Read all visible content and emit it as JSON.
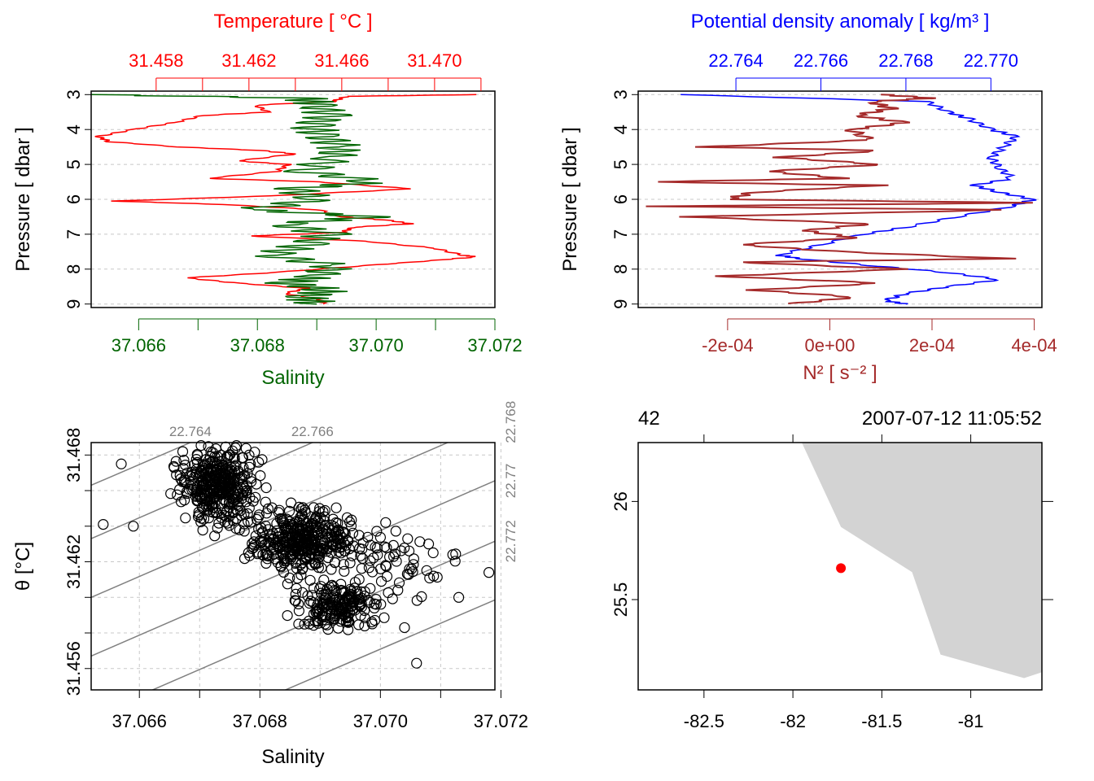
{
  "colors": {
    "temperature": "#ff0000",
    "salinity": "#006400",
    "density": "#0000ff",
    "n2": "#a52a2a",
    "grid": "#c8c8c8",
    "isopycnal": "#808080",
    "land": "#d3d3d3",
    "station": "#ff0000",
    "axis": "#000000"
  },
  "chart_data": [
    {
      "id": "profile_ts",
      "type": "line",
      "temp_axis": {
        "label": "Temperature [ °C ]",
        "ticks": [
          "31.458",
          "31.462",
          "31.466",
          "31.470"
        ],
        "range": [
          31.4552,
          31.4726
        ]
      },
      "sal_axis": {
        "label": "Salinity",
        "ticks": [
          "37.066",
          "37.068",
          "37.070",
          "37.072"
        ],
        "range": [
          37.0652,
          37.072
        ]
      },
      "pressure_axis": {
        "label": "Pressure [ dbar ]",
        "ticks": [
          "3",
          "4",
          "5",
          "6",
          "7",
          "8",
          "9"
        ],
        "range": [
          2.9,
          9.1
        ]
      },
      "series": [
        {
          "name": "Temperature",
          "pressure": [
            3.0,
            3.05,
            3.2,
            3.3,
            3.5,
            3.6,
            3.8,
            4.0,
            4.2,
            4.35,
            4.5,
            4.6,
            4.7,
            4.9,
            5.0,
            5.2,
            5.4,
            5.5,
            5.7,
            5.9,
            6.05,
            6.15,
            6.3,
            6.5,
            6.6,
            6.7,
            6.8,
            6.95,
            7.05,
            7.2,
            7.4,
            7.6,
            7.65,
            7.75,
            7.9,
            8.1,
            8.25,
            8.4,
            8.55,
            8.7,
            8.85,
            9.0
          ],
          "values": [
            31.4718,
            31.4662,
            31.4656,
            31.4623,
            31.4628,
            31.46,
            31.4588,
            31.457,
            31.4555,
            31.456,
            31.459,
            31.4625,
            31.464,
            31.4615,
            31.4637,
            31.4632,
            31.4602,
            31.465,
            31.469,
            31.463,
            31.4562,
            31.461,
            31.465,
            31.466,
            31.468,
            31.469,
            31.4665,
            31.466,
            31.462,
            31.467,
            31.47,
            31.4712,
            31.4718,
            31.47,
            31.467,
            31.463,
            31.4593,
            31.4615,
            31.4645,
            31.4635,
            31.465,
            31.4652
          ]
        },
        {
          "name": "Salinity",
          "pressure": [
            3.0,
            3.1,
            3.3,
            3.6,
            3.9,
            4.2,
            4.5,
            4.8,
            5.2,
            5.5,
            5.7,
            6.0,
            6.3,
            6.5,
            6.7,
            7.0,
            7.3,
            7.6,
            7.9,
            8.2,
            8.4,
            8.6,
            8.8,
            9.0
          ],
          "values": [
            37.0652,
            37.0688,
            37.069,
            37.0692,
            37.0689,
            37.0691,
            37.0694,
            37.0693,
            37.0688,
            37.07,
            37.0686,
            37.069,
            37.0679,
            37.07,
            37.0684,
            37.0692,
            37.0688,
            37.0682,
            37.0693,
            37.069,
            37.0685,
            37.0692,
            37.0688,
            37.069
          ]
        }
      ]
    },
    {
      "id": "profile_density_n2",
      "type": "line",
      "density_axis": {
        "label": "Potential density anomaly [ kg/m³ ]",
        "ticks": [
          "22.764",
          "22.766",
          "22.768",
          "22.770"
        ],
        "range": [
          22.7617,
          22.7712
        ]
      },
      "n2_axis": {
        "label": "N² [ s⁻² ]",
        "ticks": [
          "-2e-04",
          "0e+00",
          "2e-04",
          "4e-04"
        ],
        "range": [
          -0.000375,
          0.000415
        ]
      },
      "pressure_axis": {
        "label": "Pressure [ dbar ]",
        "ticks": [
          "3",
          "4",
          "5",
          "6",
          "7",
          "8",
          "9"
        ],
        "range": [
          2.9,
          9.1
        ]
      },
      "series": [
        {
          "name": "Density",
          "pressure": [
            3.0,
            3.2,
            3.5,
            3.7,
            4.0,
            4.2,
            4.5,
            4.8,
            5.1,
            5.4,
            5.6,
            5.8,
            6.0,
            6.2,
            6.5,
            6.8,
            7.0,
            7.3,
            7.6,
            7.7,
            7.9,
            8.1,
            8.3,
            8.5,
            8.7,
            8.9,
            9.0
          ],
          "values": [
            22.7627,
            22.7685,
            22.769,
            22.7695,
            22.77,
            22.7706,
            22.7703,
            22.77,
            22.7702,
            22.7705,
            22.7696,
            22.7702,
            22.771,
            22.7705,
            22.7692,
            22.768,
            22.767,
            22.766,
            22.765,
            22.7655,
            22.7672,
            22.769,
            22.7702,
            22.769,
            22.768,
            22.7675,
            22.768
          ]
        },
        {
          "name": "N2",
          "pressure": [
            3.0,
            3.1,
            3.2,
            3.4,
            3.6,
            3.8,
            4.0,
            4.3,
            4.5,
            4.6,
            4.8,
            5.0,
            5.2,
            5.4,
            5.5,
            5.6,
            5.8,
            6.0,
            6.1,
            6.2,
            6.3,
            6.5,
            6.7,
            6.9,
            7.1,
            7.3,
            7.5,
            7.7,
            7.8,
            8.0,
            8.2,
            8.4,
            8.6,
            8.8,
            9.0
          ],
          "values": [
            0.0001,
            0.0002,
            8e-05,
            0.00012,
            5e-05,
            0.00015,
            4e-05,
            8e-05,
            -0.00025,
            0.0001,
            -0.0001,
            0.0001,
            -0.00012,
            3e-05,
            -0.00035,
            0.0001,
            -0.00015,
            -0.0002,
            0.0004,
            -0.00035,
            0.00035,
            -0.00028,
            8e-05,
            -5e-05,
            5e-05,
            -0.00018,
            2e-05,
            0.00035,
            -0.00018,
            0.00015,
            -0.00022,
            0.0001,
            -0.00015,
            5e-05,
            -8e-05
          ]
        }
      ]
    },
    {
      "id": "ts_diagram",
      "type": "scatter",
      "xlabel": "Salinity",
      "ylabel": "θ [°C]",
      "x_ticks": [
        "37.066",
        "37.068",
        "37.070",
        "37.072"
      ],
      "y_ticks": [
        "31.456",
        "31.462",
        "31.468"
      ],
      "xlim": [
        37.0652,
        37.0719
      ],
      "ylim": [
        31.4548,
        31.4687
      ],
      "isopycnal_labels": [
        "22.764",
        "22.766",
        "22.768",
        "22.77",
        "22.772"
      ],
      "isopycnals": [
        {
          "label": "22.764",
          "edge": "top",
          "lines": [
            [
              37.0652,
              31.4663
            ],
            [
              37.07,
              31.4733
            ]
          ]
        },
        {
          "label": "22.766",
          "edge": "top",
          "lines": [
            [
              37.0652,
              31.4633
            ],
            [
              37.072,
              31.4733
            ]
          ]
        },
        {
          "label": "22.768",
          "edge": "right",
          "lines": [
            [
              37.0652,
              31.46
            ],
            [
              37.072,
              31.47
            ]
          ]
        },
        {
          "label": "22.77",
          "edge": "right",
          "lines": [
            [
              37.0652,
              31.4567
            ],
            [
              37.072,
              31.4667
            ]
          ]
        },
        {
          "label": "22.772",
          "edge": "right",
          "lines": [
            [
              37.0652,
              31.4533
            ],
            [
              37.072,
              31.4633
            ]
          ]
        },
        {
          "label": "",
          "edge": "none",
          "lines": [
            [
              37.0665,
              31.452
            ],
            [
              37.072,
              31.46
            ]
          ]
        }
      ],
      "cloud_clusters": [
        {
          "sx": 37.0673,
          "sy": 31.4663,
          "wx": 0.0009,
          "wy": 0.003,
          "n": 360
        },
        {
          "sx": 37.0687,
          "sy": 31.4632,
          "wx": 0.0012,
          "wy": 0.0025,
          "n": 380
        },
        {
          "sx": 37.0693,
          "sy": 31.4595,
          "wx": 0.001,
          "wy": 0.002,
          "n": 180
        },
        {
          "sx": 37.0702,
          "sy": 31.4618,
          "wx": 0.0013,
          "wy": 0.003,
          "n": 60
        }
      ],
      "outliers": [
        [
          37.0657,
          31.4675
        ],
        [
          37.0654,
          31.4641
        ],
        [
          37.0659,
          31.464
        ],
        [
          37.0708,
          31.463
        ],
        [
          37.0712,
          31.4624
        ],
        [
          37.0718,
          31.4614
        ],
        [
          37.0713,
          31.46
        ],
        [
          37.0704,
          31.4583
        ],
        [
          37.0706,
          31.4563
        ]
      ]
    },
    {
      "id": "map",
      "type": "map",
      "top_labels": [
        "42",
        "2007-07-12 11:05:52"
      ],
      "x_ticks": [
        "-82.5",
        "-82",
        "-81.5",
        "-81"
      ],
      "y_ticks": [
        "25.5",
        "26"
      ],
      "lon_range": [
        -82.87,
        -80.6
      ],
      "lat_range": [
        25.04,
        26.3
      ],
      "land_polygon": [
        [
          -81.95,
          26.3
        ],
        [
          -81.73,
          25.87
        ],
        [
          -81.33,
          25.64
        ],
        [
          -81.17,
          25.22
        ],
        [
          -80.7,
          25.1
        ],
        [
          -80.6,
          25.13
        ],
        [
          -80.6,
          26.3
        ]
      ],
      "station": {
        "lon": -81.73,
        "lat": 25.66
      }
    }
  ]
}
